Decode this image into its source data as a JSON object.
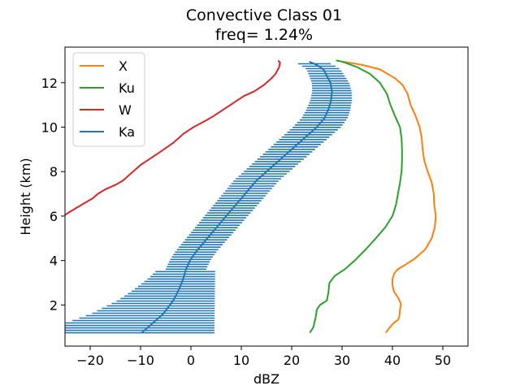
{
  "chart_data": {
    "type": "line",
    "title": "Convective Class 01",
    "subtitle": "freq=  1.24%",
    "xlabel": "dBZ",
    "ylabel": "Height (km)",
    "xlim": [
      -25,
      55
    ],
    "ylim": [
      0.15,
      13.6
    ],
    "xticks": [
      -20,
      -10,
      0,
      10,
      20,
      30,
      40,
      50
    ],
    "xtick_labels": [
      "−20",
      "−10",
      "0",
      "10",
      "20",
      "30",
      "40",
      "50"
    ],
    "yticks": [
      2,
      4,
      6,
      8,
      10,
      12
    ],
    "ytick_labels": [
      "2",
      "4",
      "6",
      "8",
      "10",
      "12"
    ],
    "grid": false,
    "legend_position": "top-left",
    "legend": [
      "X",
      "Ku",
      "W",
      "Ka"
    ],
    "series": [
      {
        "name": "X",
        "color": "#ff7f0e",
        "points": [
          [
            38.7,
            0.75
          ],
          [
            39.5,
            1.0
          ],
          [
            40.3,
            1.2
          ],
          [
            41.2,
            1.35
          ],
          [
            41.4,
            1.55
          ],
          [
            41.5,
            1.8
          ],
          [
            41.7,
            2.05
          ],
          [
            41.2,
            2.3
          ],
          [
            40.3,
            2.6
          ],
          [
            40.0,
            2.9
          ],
          [
            40.0,
            3.15
          ],
          [
            40.3,
            3.4
          ],
          [
            41.0,
            3.6
          ],
          [
            42.5,
            3.8
          ],
          [
            44.5,
            4.1
          ],
          [
            46.5,
            4.5
          ],
          [
            47.8,
            5.0
          ],
          [
            48.4,
            5.5
          ],
          [
            48.6,
            6.0
          ],
          [
            48.3,
            6.5
          ],
          [
            48.2,
            7.0
          ],
          [
            47.8,
            7.5
          ],
          [
            47.0,
            8.0
          ],
          [
            46.3,
            8.5
          ],
          [
            46.0,
            9.0
          ],
          [
            45.8,
            9.5
          ],
          [
            45.4,
            10.0
          ],
          [
            44.6,
            10.5
          ],
          [
            43.6,
            11.0
          ],
          [
            43.0,
            11.5
          ],
          [
            42.0,
            11.9
          ],
          [
            40.5,
            12.2
          ],
          [
            39.0,
            12.4
          ],
          [
            37.5,
            12.6
          ],
          [
            34.0,
            12.8
          ],
          [
            31.5,
            12.9
          ],
          [
            30.0,
            12.95
          ]
        ]
      },
      {
        "name": "Ku",
        "color": "#2ca02c",
        "points": [
          [
            23.6,
            0.75
          ],
          [
            24.3,
            1.0
          ],
          [
            24.8,
            1.5
          ],
          [
            25.0,
            1.8
          ],
          [
            25.6,
            2.0
          ],
          [
            27.0,
            2.2
          ],
          [
            27.3,
            2.6
          ],
          [
            27.5,
            3.0
          ],
          [
            28.5,
            3.3
          ],
          [
            30.5,
            3.6
          ],
          [
            32.5,
            4.0
          ],
          [
            34.7,
            4.5
          ],
          [
            36.7,
            5.0
          ],
          [
            38.6,
            5.5
          ],
          [
            40.0,
            6.0
          ],
          [
            40.7,
            6.5
          ],
          [
            41.1,
            7.0
          ],
          [
            41.5,
            7.5
          ],
          [
            41.8,
            8.0
          ],
          [
            41.9,
            8.5
          ],
          [
            41.9,
            9.0
          ],
          [
            41.8,
            9.5
          ],
          [
            41.5,
            10.0
          ],
          [
            40.5,
            10.5
          ],
          [
            39.6,
            11.0
          ],
          [
            38.9,
            11.5
          ],
          [
            37.5,
            12.0
          ],
          [
            35.5,
            12.4
          ],
          [
            33.0,
            12.7
          ],
          [
            30.0,
            12.95
          ],
          [
            28.8,
            13.0
          ]
        ]
      },
      {
        "name": "W",
        "color": "#d62728",
        "points": [
          [
            -25.0,
            6.05
          ],
          [
            -24.0,
            6.2
          ],
          [
            -22.5,
            6.4
          ],
          [
            -21.0,
            6.6
          ],
          [
            -19.5,
            6.8
          ],
          [
            -18.5,
            7.0
          ],
          [
            -17.0,
            7.2
          ],
          [
            -15.0,
            7.4
          ],
          [
            -13.5,
            7.6
          ],
          [
            -12.5,
            7.8
          ],
          [
            -11.5,
            8.0
          ],
          [
            -10.0,
            8.3
          ],
          [
            -8.0,
            8.6
          ],
          [
            -6.0,
            8.9
          ],
          [
            -3.5,
            9.3
          ],
          [
            -1.5,
            9.7
          ],
          [
            0.5,
            10.0
          ],
          [
            3.0,
            10.3
          ],
          [
            4.5,
            10.5
          ],
          [
            6.5,
            10.8
          ],
          [
            8.5,
            11.1
          ],
          [
            10.5,
            11.4
          ],
          [
            12.5,
            11.6
          ],
          [
            14.5,
            11.9
          ],
          [
            16.0,
            12.2
          ],
          [
            16.8,
            12.4
          ],
          [
            17.5,
            12.7
          ],
          [
            17.7,
            12.9
          ],
          [
            17.3,
            13.0
          ]
        ]
      },
      {
        "name": "Ka",
        "color": "#1f77b4",
        "points": [
          [
            -9.8,
            0.75
          ],
          [
            -8.5,
            1.0
          ],
          [
            -7.0,
            1.3
          ],
          [
            -5.5,
            1.6
          ],
          [
            -4.5,
            1.9
          ],
          [
            -3.5,
            2.2
          ],
          [
            -2.8,
            2.5
          ],
          [
            -2.2,
            2.8
          ],
          [
            -1.5,
            3.2
          ],
          [
            -1.0,
            3.6
          ],
          [
            -0.2,
            4.0
          ],
          [
            1.0,
            4.4
          ],
          [
            2.5,
            4.8
          ],
          [
            4.0,
            5.2
          ],
          [
            5.5,
            5.6
          ],
          [
            7.0,
            6.0
          ],
          [
            8.5,
            6.4
          ],
          [
            10.0,
            6.8
          ],
          [
            11.5,
            7.2
          ],
          [
            13.0,
            7.6
          ],
          [
            15.0,
            8.0
          ],
          [
            17.0,
            8.4
          ],
          [
            19.0,
            8.8
          ],
          [
            21.0,
            9.2
          ],
          [
            23.0,
            9.6
          ],
          [
            25.0,
            10.0
          ],
          [
            26.5,
            10.4
          ],
          [
            27.3,
            10.8
          ],
          [
            27.8,
            11.2
          ],
          [
            28.0,
            11.6
          ],
          [
            27.7,
            12.0
          ],
          [
            27.0,
            12.3
          ],
          [
            26.3,
            12.6
          ],
          [
            25.0,
            12.8
          ],
          [
            23.5,
            12.95
          ]
        ]
      }
    ]
  }
}
